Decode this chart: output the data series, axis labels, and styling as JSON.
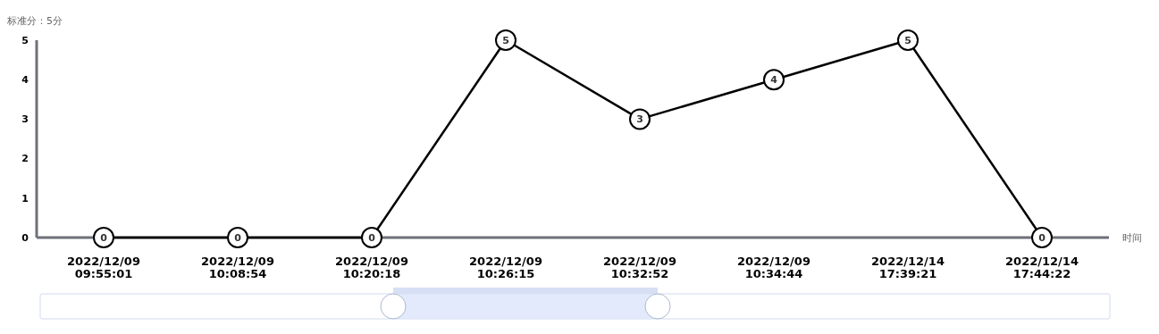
{
  "chart_data": {
    "type": "line",
    "ylabel": "标准分：5分",
    "xlabel": "时间",
    "categories": [
      "2022/12/09\n09:55:01",
      "2022/12/09\n10:08:54",
      "2022/12/09\n10:20:18",
      "2022/12/09\n10:26:15",
      "2022/12/09\n10:32:52",
      "2022/12/09\n10:34:44",
      "2022/12/14\n17:39:21",
      "2022/12/14\n17:44:22"
    ],
    "series": [
      {
        "color": "#000000",
        "values": [
          0,
          0,
          0,
          5,
          3,
          4,
          5,
          0
        ]
      }
    ],
    "ylim": [
      0,
      5
    ],
    "yticks": [
      0,
      1,
      2,
      3,
      4,
      5
    ],
    "marker": "circle",
    "line_style": "solid",
    "data_labels": true
  }
}
